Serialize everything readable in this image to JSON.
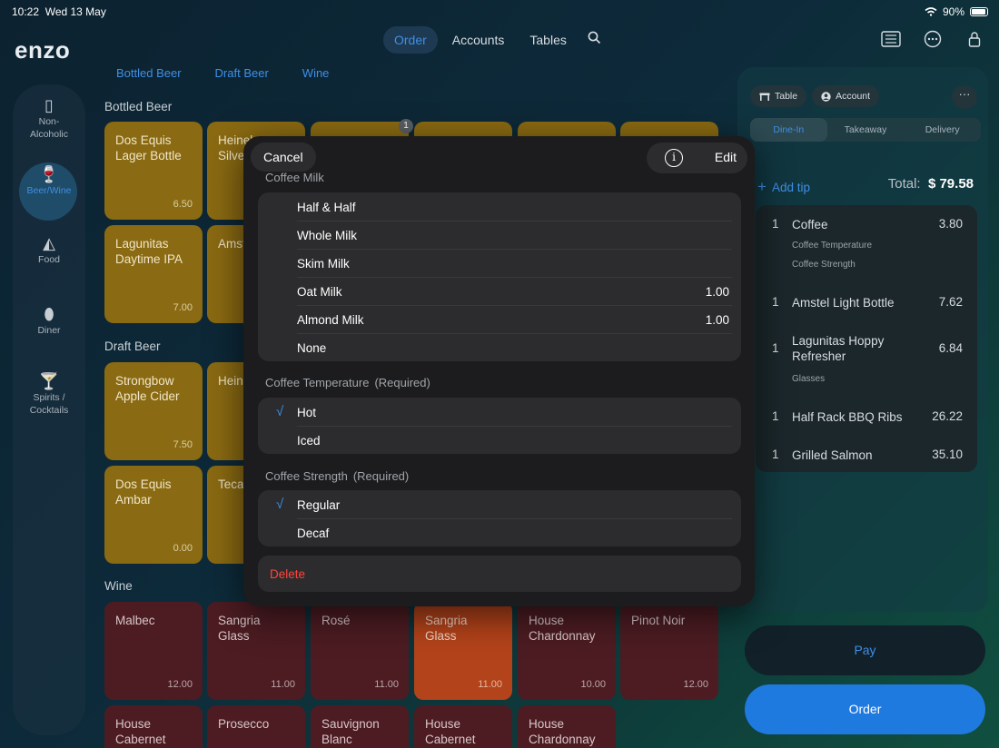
{
  "status": {
    "time": "10:22",
    "date": "Wed 13 May",
    "battery": "90%"
  },
  "brand": "enzo",
  "nav": {
    "order": "Order",
    "accounts": "Accounts",
    "tables": "Tables"
  },
  "subtabs": [
    "Bottled Beer",
    "Draft Beer",
    "Wine"
  ],
  "categories": [
    {
      "label": "Non-Alcoholic",
      "icon": "glass-icon"
    },
    {
      "label": "Beer/Wine",
      "icon": "wine-glass-icon"
    },
    {
      "label": "Food",
      "icon": "pizza-icon"
    },
    {
      "label": "Diner",
      "icon": "drumstick-icon"
    },
    {
      "label": "Spirits / Cocktails",
      "icon": "cocktail-icon"
    }
  ],
  "sections": {
    "bottled": "Bottled Beer",
    "draft": "Draft Beer",
    "wine": "Wine"
  },
  "tiles": {
    "bottled": [
      {
        "name": "Dos Equis Lager Bottle",
        "price": "6.50"
      },
      {
        "name": "Heineken Silver",
        "price": ""
      },
      {
        "name": "Lagunitas Daytime IPA",
        "price": "7.00"
      },
      {
        "name": "Amstel Light",
        "price": ""
      }
    ],
    "draft": [
      {
        "name": "Strongbow Apple Cider",
        "price": "7.50"
      },
      {
        "name": "Heineken",
        "price": ""
      },
      {
        "name": "Dos Equis Ambar",
        "price": "0.00"
      },
      {
        "name": "Tecate",
        "price": ""
      }
    ],
    "wine": [
      {
        "name": "Malbec",
        "price": "12.00"
      },
      {
        "name": "Sangria Glass",
        "price": "11.00"
      },
      {
        "name": "Rosé",
        "price": "11.00"
      },
      {
        "name": "Sangria Glass",
        "price": "11.00"
      },
      {
        "name": "House Chardonnay",
        "price": "10.00"
      },
      {
        "name": "Pinot Noir",
        "price": "12.00"
      },
      {
        "name": "House Cabernet",
        "price": ""
      },
      {
        "name": "Prosecco",
        "price": ""
      },
      {
        "name": "Sauvignon Blanc",
        "price": ""
      },
      {
        "name": "House Cabernet",
        "price": ""
      },
      {
        "name": "House Chardonnay",
        "price": ""
      }
    ]
  },
  "badge_count": "1",
  "modal": {
    "cancel": "Cancel",
    "edit": "Edit",
    "milk_title": "Coffee Milk",
    "milk_options": [
      {
        "label": "Half & Half",
        "price": ""
      },
      {
        "label": "Whole Milk",
        "price": ""
      },
      {
        "label": "Skim Milk",
        "price": ""
      },
      {
        "label": "Oat Milk",
        "price": "1.00"
      },
      {
        "label": "Almond Milk",
        "price": "1.00"
      },
      {
        "label": "None",
        "price": ""
      }
    ],
    "temp_title": "Coffee Temperature",
    "temp_required": "(Required)",
    "temp_options": [
      {
        "label": "Hot",
        "checked": true
      },
      {
        "label": "Iced",
        "checked": false
      }
    ],
    "strength_title": "Coffee Strength",
    "strength_required": "(Required)",
    "strength_options": [
      {
        "label": "Regular",
        "checked": true
      },
      {
        "label": "Decaf",
        "checked": false
      }
    ],
    "delete": "Delete",
    "check_glyph": "√"
  },
  "panel": {
    "table": "Table",
    "account": "Account",
    "more": "···",
    "modes": [
      "Dine-In",
      "Takeaway",
      "Delivery"
    ],
    "add_tip": "Add tip",
    "total_label": "Total:",
    "total_value": "$ 79.58",
    "items": [
      {
        "qty": "1",
        "name": "Coffee",
        "price": "3.80",
        "mods": [
          "Coffee Temperature",
          "Coffee Strength"
        ]
      },
      {
        "qty": "1",
        "name": "Amstel Light Bottle",
        "price": "7.62",
        "mods": []
      },
      {
        "qty": "1",
        "name": "Lagunitas Hoppy Refresher",
        "price": "6.84",
        "mods": [
          "Glasses"
        ]
      },
      {
        "qty": "1",
        "name": "Half Rack BBQ Ribs",
        "price": "26.22",
        "mods": []
      },
      {
        "qty": "1",
        "name": "Grilled Salmon",
        "price": "35.10",
        "mods": []
      }
    ],
    "pay": "Pay",
    "order": "Order"
  },
  "colors": {
    "accent": "#3f8fe6",
    "beer_tile": "#8a6a12",
    "wine_tile": "#4c1c22",
    "delete": "#ff453a"
  }
}
